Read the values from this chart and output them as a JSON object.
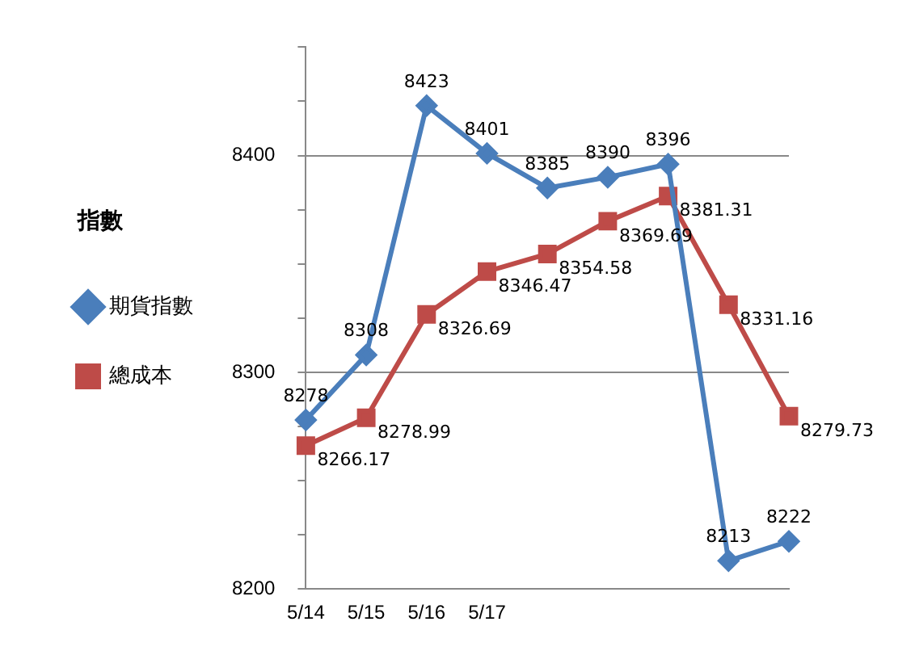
{
  "chart_data": {
    "type": "line",
    "ylabel": "指數",
    "categories": [
      "5/14",
      "5/15",
      "5/16",
      "5/17",
      null,
      null,
      null,
      null,
      null
    ],
    "series": [
      {
        "name": "期貨指數",
        "color": "#4a7ebb",
        "marker": "diamond",
        "values": [
          8278,
          8308,
          8423,
          8401,
          8385,
          8390,
          8396,
          8213,
          8222
        ]
      },
      {
        "name": "總成本",
        "color": "#be4b48",
        "marker": "square",
        "values": [
          8266.17,
          8278.99,
          8326.69,
          8346.47,
          8354.58,
          8369.69,
          8381.31,
          8331.16,
          8279.73
        ]
      }
    ],
    "ylim": [
      8200,
      8450
    ],
    "yticks": [
      8200,
      {
        "value": 8225,
        "label": null
      },
      {
        "value": 8250,
        "label": null
      },
      {
        "value": 8275,
        "label": null
      },
      8300,
      {
        "value": 8325,
        "label": null
      },
      {
        "value": 8350,
        "label": null
      },
      {
        "value": 8375,
        "label": null
      },
      8400,
      {
        "value": 8425,
        "label": null
      },
      {
        "value": 8450,
        "label": null
      }
    ],
    "grid": "y",
    "legend": "left",
    "data_labels": true,
    "line_style": "solid"
  }
}
